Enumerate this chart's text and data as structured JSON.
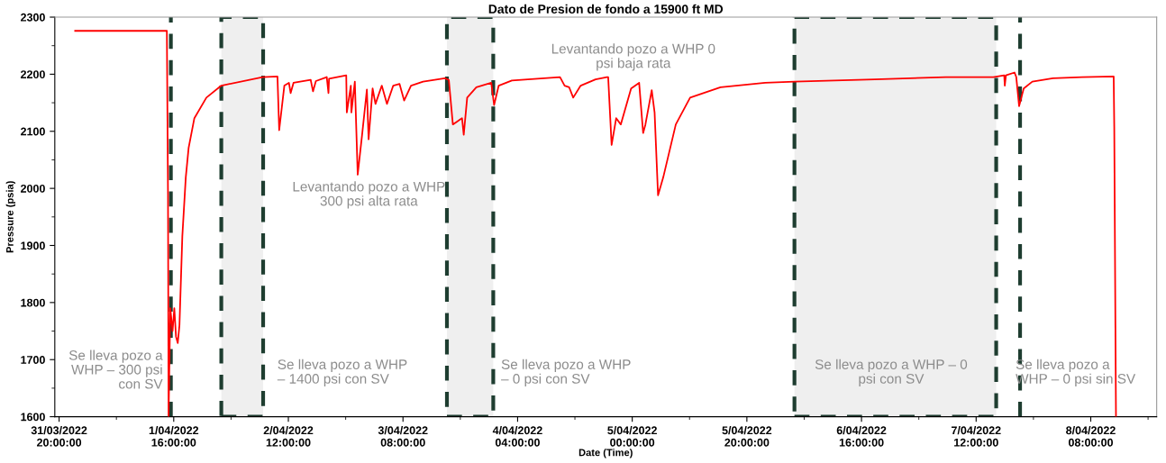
{
  "chart_data": {
    "type": "line",
    "title": "Dato de Presion de fondo a 15900 ft MD",
    "xlabel": "Date (Time)",
    "ylabel": "Pressure (psia)",
    "xlim": [
      "2022-03-31T19:15",
      "2022-04-08T19:30"
    ],
    "xticks": [
      {
        "value": "2022-03-31T20:00",
        "label": "31/03/2022\n20:00:00"
      },
      {
        "value": "2022-04-01T06:00",
        "label": null
      },
      {
        "value": "2022-04-01T16:00",
        "label": "1/04/2022\n16:00:00"
      },
      {
        "value": "2022-04-02T02:00",
        "label": null
      },
      {
        "value": "2022-04-02T12:00",
        "label": "2/04/2022\n12:00:00"
      },
      {
        "value": "2022-04-02T22:00",
        "label": null
      },
      {
        "value": "2022-04-03T08:00",
        "label": "3/04/2022\n08:00:00"
      },
      {
        "value": "2022-04-03T18:00",
        "label": null
      },
      {
        "value": "2022-04-04T04:00",
        "label": "4/04/2022\n04:00:00"
      },
      {
        "value": "2022-04-04T14:00",
        "label": null
      },
      {
        "value": "2022-04-05T00:00",
        "label": "5/04/2022\n00:00:00"
      },
      {
        "value": "2022-04-05T10:00",
        "label": null
      },
      {
        "value": "2022-04-05T20:00",
        "label": "5/04/2022\n20:00:00"
      },
      {
        "value": "2022-04-06T06:00",
        "label": null
      },
      {
        "value": "2022-04-06T16:00",
        "label": "6/04/2022\n16:00:00"
      },
      {
        "value": "2022-04-07T02:00",
        "label": null
      },
      {
        "value": "2022-04-07T12:00",
        "label": "7/04/2022\n12:00:00"
      },
      {
        "value": "2022-04-07T22:00",
        "label": null
      },
      {
        "value": "2022-04-08T08:00",
        "label": "8/04/2022\n08:00:00"
      },
      {
        "value": "2022-04-08T18:00",
        "label": null
      }
    ],
    "ylim": [
      1600,
      2300
    ],
    "yticks": [
      1600,
      {
        "value": 1650,
        "label": null
      },
      1700,
      {
        "value": 1750,
        "label": null
      },
      1800,
      {
        "value": 1850,
        "label": null
      },
      1900,
      {
        "value": 1950,
        "label": null
      },
      2000,
      {
        "value": 2050,
        "label": null
      },
      2100,
      {
        "value": 2150,
        "label": null
      },
      2200,
      {
        "value": 2250,
        "label": null
      },
      2300
    ],
    "grid": false,
    "legend": false,
    "marker": "none",
    "line_style": "solid",
    "series": [
      {
        "color": "#ff0000",
        "x": [
          "2022-03-31T22:48",
          "2022-04-01T14:48",
          "2022-04-01T15:00",
          "2022-04-01T15:06",
          "2022-04-01T15:24",
          "2022-04-01T15:48",
          "2022-04-01T16:06",
          "2022-04-01T16:24",
          "2022-04-01T16:42",
          "2022-04-01T17:00",
          "2022-04-01T17:30",
          "2022-04-01T18:06",
          "2022-04-01T18:36",
          "2022-04-01T19:36",
          "2022-04-01T21:42",
          "2022-04-02T00:18",
          "2022-04-02T07:30",
          "2022-04-02T10:06",
          "2022-04-02T10:24",
          "2022-04-02T11:18",
          "2022-04-02T12:06",
          "2022-04-02T12:24",
          "2022-04-02T12:54",
          "2022-04-02T15:54",
          "2022-04-02T16:18",
          "2022-04-02T16:48",
          "2022-04-02T18:42",
          "2022-04-02T19:00",
          "2022-04-02T19:06",
          "2022-04-02T22:06",
          "2022-04-02T22:12",
          "2022-04-02T22:54",
          "2022-04-02T23:00",
          "2022-04-02T23:36",
          "2022-04-03T00:06",
          "2022-04-03T00:54",
          "2022-04-03T01:42",
          "2022-04-03T02:00",
          "2022-04-03T02:42",
          "2022-04-03T03:12",
          "2022-04-03T04:18",
          "2022-04-03T05:12",
          "2022-04-03T06:18",
          "2022-04-03T07:24",
          "2022-04-03T08:12",
          "2022-04-03T09:24",
          "2022-04-03T11:30",
          "2022-04-03T15:18",
          "2022-04-03T16:00",
          "2022-04-03T16:42",
          "2022-04-03T18:18",
          "2022-04-03T18:36",
          "2022-04-03T19:12",
          "2022-04-03T20:48",
          "2022-04-03T23:24",
          "2022-04-03T23:54",
          "2022-04-04T00:42",
          "2022-04-04T03:00",
          "2022-04-04T11:24",
          "2022-04-04T12:12",
          "2022-04-04T13:00",
          "2022-04-04T13:42",
          "2022-04-04T15:00",
          "2022-04-04T17:36",
          "2022-04-04T19:36",
          "2022-04-04T19:48",
          "2022-04-04T20:24",
          "2022-04-04T21:12",
          "2022-04-04T22:00",
          "2022-04-04T23:48",
          "2022-04-05T01:12",
          "2022-04-05T01:54",
          "2022-04-05T02:18",
          "2022-04-05T03:24",
          "2022-04-05T03:54",
          "2022-04-05T04:30",
          "2022-04-05T05:24",
          "2022-04-05T07:36",
          "2022-04-05T10:06",
          "2022-04-05T15:24",
          "2022-04-05T23:12",
          "2022-04-06T04:18",
          "2022-04-06T18:18",
          "2022-04-07T06:42",
          "2022-04-07T15:00",
          "2022-04-07T16:54",
          "2022-04-07T17:00",
          "2022-04-07T17:12",
          "2022-04-07T18:42",
          "2022-04-07T19:00",
          "2022-04-07T19:30",
          "2022-04-07T20:18",
          "2022-04-07T21:48",
          "2022-04-08T01:24",
          "2022-04-08T06:30",
          "2022-04-08T12:00",
          "2022-04-08T12:06",
          "2022-04-08T12:18",
          "2022-04-08T12:24"
        ],
        "values": [
          2276,
          2276,
          1990,
          1600,
          1790,
          1750,
          1790,
          1740,
          1729,
          1760,
          1916,
          2019,
          2071,
          2123,
          2159,
          2180,
          2195,
          2196,
          2102,
          2180,
          2185,
          2167,
          2185,
          2190,
          2170,
          2188,
          2195,
          2167,
          2192,
          2198,
          2133,
          2180,
          2133,
          2187,
          2024,
          2097,
          2173,
          2086,
          2175,
          2148,
          2180,
          2148,
          2180,
          2183,
          2154,
          2180,
          2187,
          2193,
          2190,
          2112,
          2123,
          2094,
          2159,
          2177,
          2185,
          2146,
          2180,
          2189,
          2195,
          2180,
          2177,
          2159,
          2180,
          2191,
          2195,
          2195,
          2076,
          2123,
          2112,
          2175,
          2185,
          2097,
          2112,
          2172,
          2133,
          1988,
          2019,
          2112,
          2159,
          2177,
          2185,
          2187,
          2191,
          2195,
          2195,
          2198,
          2180,
          2198,
          2203,
          2195,
          2144,
          2175,
          2187,
          2193,
          2195,
          2196,
          2108,
          1760,
          1600
        ]
      }
    ],
    "ref_lines": [
      {
        "axis": "x",
        "value": "2022-04-01T15:30",
        "color": "#1e3d30",
        "line_style": "dashed"
      },
      {
        "axis": "x",
        "value": "2022-04-07T19:40",
        "color": "#1e3d30",
        "line_style": "dashed"
      }
    ],
    "bands": [
      {
        "axis": "x",
        "from": "2022-04-02T00:18",
        "to": "2022-04-02T07:36",
        "color": "#efefef"
      },
      {
        "axis": "x",
        "from": "2022-04-03T15:40",
        "to": "2022-04-03T23:45",
        "color": "#efefef"
      },
      {
        "axis": "x",
        "from": "2022-04-06T04:18",
        "to": "2022-04-07T15:30",
        "color": "#efefef"
      }
    ],
    "annotations": [
      "Se lleva pozo a\nWHP – 300 psi\ncon SV",
      "Levantando pozo a WHP\n300 psi alta rata",
      "Se lleva pozo a WHP\n– 1400 psi con SV",
      "Levantando pozo a WHP 0\npsi baja rata",
      "Se lleva pozo a WHP\n– 0 psi con SV",
      "Se lleva pozo a WHP – 0\npsi con SV",
      "Se lleva pozo a\nWHP – 0 psi sin SV"
    ]
  }
}
